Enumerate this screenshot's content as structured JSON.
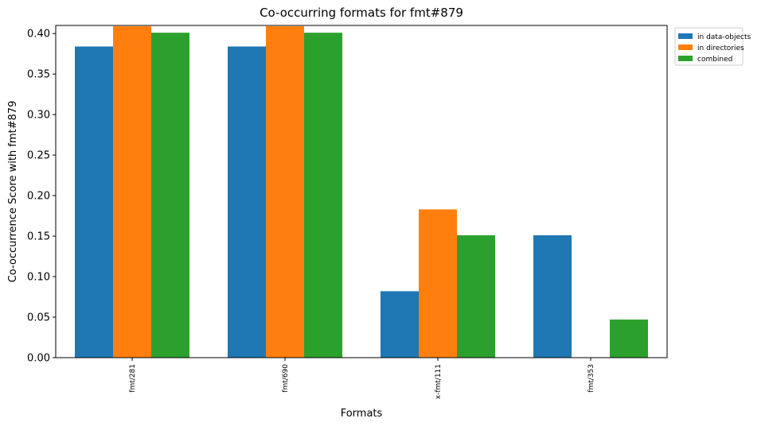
{
  "chart_data": {
    "type": "bar",
    "title": "Co-occurring formats for fmt#879",
    "xlabel": "Formats",
    "ylabel": "Co-occurrence Score with fmt#879",
    "categories": [
      "fmt/281",
      "fmt/690",
      "x-fmt/111",
      "fmt/353"
    ],
    "series": [
      {
        "name": "in data-objects",
        "color": "#1f77b4",
        "values": [
          0.384,
          0.384,
          0.082,
          0.151
        ]
      },
      {
        "name": "in directories",
        "color": "#ff7f0e",
        "values": [
          0.409,
          0.409,
          0.183,
          0.0
        ]
      },
      {
        "name": "combined",
        "color": "#2ca02c",
        "values": [
          0.401,
          0.401,
          0.151,
          0.047
        ]
      }
    ],
    "ylim": [
      0,
      0.41
    ],
    "yticks": [
      0.0,
      0.05,
      0.1,
      0.15,
      0.2,
      0.25,
      0.3,
      0.35,
      0.4
    ],
    "ytick_labels": [
      "0.00",
      "0.05",
      "0.10",
      "0.15",
      "0.20",
      "0.25",
      "0.30",
      "0.35",
      "0.40"
    ],
    "grid": false,
    "legend_position": "outside top-right"
  }
}
